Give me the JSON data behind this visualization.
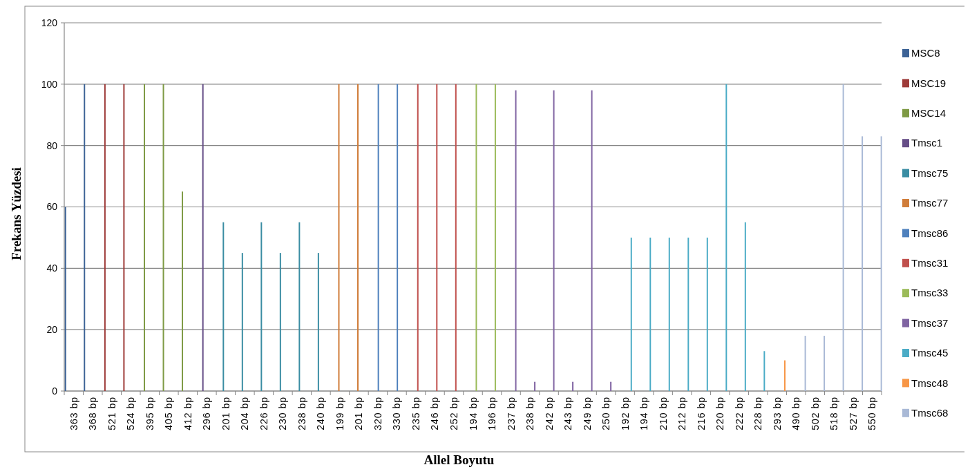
{
  "chart_data": {
    "type": "bar",
    "xlabel": "Allel Boyutu",
    "ylabel": "Frekans Yüzdesi",
    "categories": [
      "363 bp",
      "368 bp",
      "521 bp",
      "524 bp",
      "395 bp",
      "405 bp",
      "412 bp",
      "296 bp",
      "201 bp",
      "204 bp",
      "226 bp",
      "230 bp",
      "238 bp",
      "240 bp",
      "199 bp",
      "201 bp",
      "320 bp",
      "330 bp",
      "235 bp",
      "246 bp",
      "252 bp",
      "194 bp",
      "196 bp",
      "237 bp",
      "238 bp",
      "242 bp",
      "243 bp",
      "249 bp",
      "250 bp",
      "192 bp",
      "194 bp",
      "210 bp",
      "212 bp",
      "216 bp",
      "220 bp",
      "222 bp",
      "228 bp",
      "293 bp",
      "490 bp",
      "502 bp",
      "518 bp",
      "527 bp",
      "550 bp"
    ],
    "series": [
      {
        "name": "MSC8",
        "color": "#3d6396",
        "values": [
          60,
          100,
          null,
          null,
          null,
          null,
          null,
          null,
          null,
          null,
          null,
          null,
          null,
          null,
          null,
          null,
          null,
          null,
          null,
          null,
          null,
          null,
          null,
          null,
          null,
          null,
          null,
          null,
          null,
          null,
          null,
          null,
          null,
          null,
          null,
          null,
          null,
          null,
          null,
          null,
          null,
          null,
          null
        ]
      },
      {
        "name": "MSC19",
        "color": "#9e3b39",
        "values": [
          null,
          null,
          100,
          100,
          null,
          null,
          null,
          null,
          null,
          null,
          null,
          null,
          null,
          null,
          null,
          null,
          null,
          null,
          null,
          null,
          null,
          null,
          null,
          null,
          null,
          null,
          null,
          null,
          null,
          null,
          null,
          null,
          null,
          null,
          null,
          null,
          null,
          null,
          null,
          null,
          null,
          null,
          null
        ]
      },
      {
        "name": "MSC14",
        "color": "#7e9a44",
        "values": [
          null,
          null,
          null,
          null,
          100,
          100,
          65,
          null,
          null,
          null,
          null,
          null,
          null,
          null,
          null,
          null,
          null,
          null,
          null,
          null,
          null,
          null,
          null,
          null,
          null,
          null,
          null,
          null,
          null,
          null,
          null,
          null,
          null,
          null,
          null,
          null,
          null,
          null,
          null,
          null,
          null,
          null,
          null
        ]
      },
      {
        "name": "Tmsc1",
        "color": "#664e87",
        "values": [
          null,
          null,
          null,
          null,
          null,
          null,
          null,
          100,
          null,
          null,
          null,
          null,
          null,
          null,
          null,
          null,
          null,
          null,
          null,
          null,
          null,
          null,
          null,
          null,
          null,
          null,
          null,
          null,
          null,
          null,
          null,
          null,
          null,
          null,
          null,
          null,
          null,
          null,
          null,
          null,
          null,
          null,
          null
        ]
      },
      {
        "name": "Tmsc75",
        "color": "#3a8da3",
        "values": [
          null,
          null,
          null,
          null,
          null,
          null,
          null,
          null,
          55,
          45,
          55,
          45,
          55,
          45,
          null,
          null,
          null,
          null,
          null,
          null,
          null,
          null,
          null,
          null,
          null,
          null,
          null,
          null,
          null,
          null,
          null,
          null,
          null,
          null,
          null,
          null,
          null,
          null,
          null,
          null,
          null,
          null,
          null
        ]
      },
      {
        "name": "Tmsc77",
        "color": "#d07d3a",
        "values": [
          null,
          null,
          null,
          null,
          null,
          null,
          null,
          null,
          null,
          null,
          null,
          null,
          null,
          null,
          100,
          100,
          null,
          null,
          null,
          null,
          null,
          null,
          null,
          null,
          null,
          null,
          null,
          null,
          null,
          null,
          null,
          null,
          null,
          null,
          null,
          null,
          null,
          null,
          null,
          null,
          null,
          null,
          null
        ]
      },
      {
        "name": "Tmsc86",
        "color": "#4f81bd",
        "values": [
          null,
          null,
          null,
          null,
          null,
          null,
          null,
          null,
          null,
          null,
          null,
          null,
          null,
          null,
          null,
          null,
          100,
          100,
          null,
          null,
          null,
          null,
          null,
          null,
          null,
          null,
          null,
          null,
          null,
          null,
          null,
          null,
          null,
          null,
          null,
          null,
          null,
          null,
          null,
          null,
          null,
          null,
          null
        ]
      },
      {
        "name": "Tmsc31",
        "color": "#c0504d",
        "values": [
          null,
          null,
          null,
          null,
          null,
          null,
          null,
          null,
          null,
          null,
          null,
          null,
          null,
          null,
          null,
          null,
          null,
          null,
          100,
          100,
          100,
          null,
          null,
          null,
          null,
          null,
          null,
          null,
          null,
          null,
          null,
          null,
          null,
          null,
          null,
          null,
          null,
          null,
          null,
          null,
          null,
          null,
          null
        ]
      },
      {
        "name": "Tmsc33",
        "color": "#9bbb59",
        "values": [
          null,
          null,
          null,
          null,
          null,
          null,
          null,
          null,
          null,
          null,
          null,
          null,
          null,
          null,
          null,
          null,
          null,
          null,
          null,
          null,
          null,
          100,
          100,
          null,
          null,
          null,
          null,
          null,
          null,
          null,
          null,
          null,
          null,
          null,
          null,
          null,
          null,
          null,
          null,
          null,
          null,
          null,
          null
        ]
      },
      {
        "name": "Tmsc37",
        "color": "#8064a2",
        "values": [
          null,
          null,
          null,
          null,
          null,
          null,
          null,
          null,
          null,
          null,
          null,
          null,
          null,
          null,
          null,
          null,
          null,
          null,
          null,
          null,
          null,
          null,
          null,
          98,
          3,
          98,
          3,
          98,
          3,
          null,
          null,
          null,
          null,
          null,
          null,
          null,
          null,
          null,
          null,
          null,
          null,
          null,
          null
        ]
      },
      {
        "name": "Tmsc45",
        "color": "#4bacc6",
        "values": [
          null,
          null,
          null,
          null,
          null,
          null,
          null,
          null,
          null,
          null,
          null,
          null,
          null,
          null,
          null,
          null,
          null,
          null,
          null,
          null,
          null,
          null,
          null,
          null,
          null,
          null,
          null,
          null,
          null,
          50,
          50,
          50,
          50,
          50,
          100,
          55,
          13,
          null,
          null,
          null,
          null,
          null,
          null
        ]
      },
      {
        "name": "Tmsc48",
        "color": "#f79646",
        "values": [
          null,
          null,
          null,
          null,
          null,
          null,
          null,
          null,
          null,
          null,
          null,
          null,
          null,
          null,
          null,
          null,
          null,
          null,
          null,
          null,
          null,
          null,
          null,
          null,
          null,
          null,
          null,
          null,
          null,
          null,
          null,
          null,
          null,
          null,
          null,
          null,
          null,
          10,
          null,
          null,
          null,
          null,
          null
        ]
      },
      {
        "name": "Tmsc68",
        "color": "#a9b9d6",
        "values": [
          null,
          null,
          null,
          null,
          null,
          null,
          null,
          null,
          null,
          null,
          null,
          null,
          null,
          null,
          null,
          null,
          null,
          null,
          null,
          null,
          null,
          null,
          null,
          null,
          null,
          null,
          null,
          null,
          null,
          null,
          null,
          null,
          null,
          null,
          null,
          null,
          null,
          null,
          18,
          18,
          100,
          83,
          83
        ]
      }
    ],
    "ylim": [
      0,
      120
    ],
    "yticks": [
      0,
      20,
      40,
      60,
      80,
      100,
      120
    ],
    "grid": "y",
    "legend": "right"
  }
}
